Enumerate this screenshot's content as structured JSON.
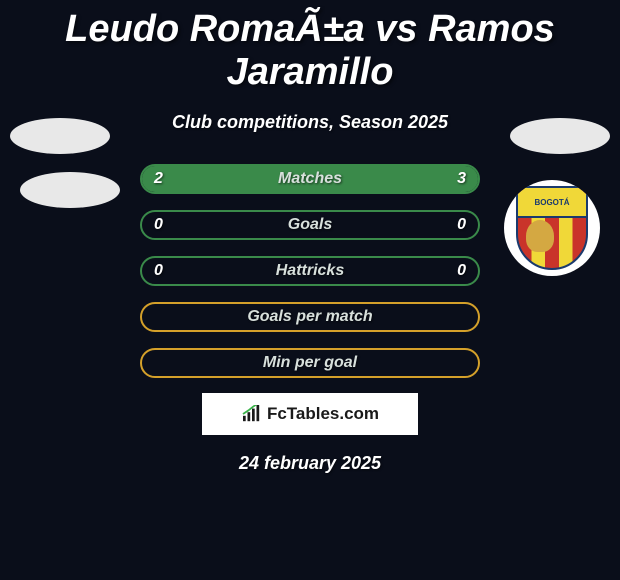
{
  "title": "Leudo RomaÃ±a vs Ramos Jaramillo",
  "subtitle": "Club competitions, Season 2025",
  "date": "24 february 2025",
  "attribution": "FcTables.com",
  "colors": {
    "background": "#0a0e1a",
    "bar_border_green": "#3a8a4a",
    "bar_fill_green": "#3a8a4a",
    "bar_border_yellow": "#d4a02a",
    "bar_fill_yellow": "#d4a02a",
    "text_primary": "#ffffff",
    "text_label": "#d8e0dc",
    "attribution_bg": "#ffffff",
    "attribution_text": "#1a1a1a"
  },
  "stats": [
    {
      "label": "Matches",
      "left_value": "2",
      "right_value": "3",
      "color_scheme": "green",
      "left_fill_pct": 40,
      "right_fill_pct": 60
    },
    {
      "label": "Goals",
      "left_value": "0",
      "right_value": "0",
      "color_scheme": "green",
      "left_fill_pct": 0,
      "right_fill_pct": 0
    },
    {
      "label": "Hattricks",
      "left_value": "0",
      "right_value": "0",
      "color_scheme": "green",
      "left_fill_pct": 0,
      "right_fill_pct": 0
    },
    {
      "label": "Goals per match",
      "left_value": "",
      "right_value": "",
      "color_scheme": "yellow",
      "left_fill_pct": 0,
      "right_fill_pct": 0
    },
    {
      "label": "Min per goal",
      "left_value": "",
      "right_value": "",
      "color_scheme": "yellow",
      "left_fill_pct": 0,
      "right_fill_pct": 0
    }
  ],
  "club_badge": {
    "name": "BOGOTÁ",
    "stripe_colors": [
      "#c9342a",
      "#f0d838"
    ],
    "border_color": "#1a3a6e"
  }
}
